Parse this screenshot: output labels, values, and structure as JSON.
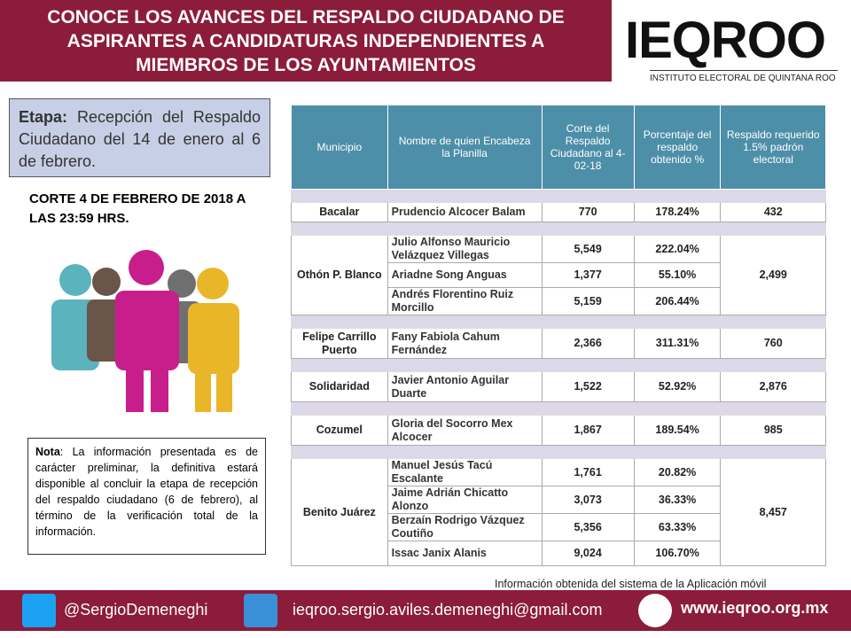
{
  "header": {
    "title": "CONOCE LOS AVANCES DEL RESPALDO CIUDADANO DE ASPIRANTES A CANDIDATURAS INDEPENDIENTES A MIEMBROS DE LOS AYUNTAMIENTOS"
  },
  "logo": {
    "name": "IEQROO",
    "subtitle": "INSTITUTO ELECTORAL DE QUINTANA ROO"
  },
  "stage": {
    "label": "Etapa:",
    "text": "Recepción del Respaldo Ciudadano del 14 de enero al 6 de febrero."
  },
  "cutoff": "CORTE 4 DE FEBRERO DE 2018 A LAS 23:59 HRS.",
  "note": {
    "label": "Nota",
    "text": ": La información presentada es de carácter preliminar, la definitiva estará disponible al concluir la etapa de recepción del respaldo ciudadano (6 de febrero), al término de la verificación total de la información."
  },
  "table": {
    "headers": [
      "Municipio",
      "Nombre de quien Encabeza la Planilla",
      "Corte del Respaldo Ciudadano al 4-02-18",
      "Porcentaje del respaldo obtenido %",
      "Respaldo requerido 1.5% padrón electoral"
    ],
    "groups": [
      {
        "municipio": "Bacalar",
        "requerido": "432",
        "candidates": [
          {
            "name": "Prudencio Alcocer Balam",
            "corte": "770",
            "pct": "178.24%"
          }
        ]
      },
      {
        "municipio": "Othón P. Blanco",
        "requerido": "2,499",
        "candidates": [
          {
            "name": "Julio Alfonso Mauricio Velázquez Villegas",
            "corte": "5,549",
            "pct": "222.04%"
          },
          {
            "name": "Ariadne Song Anguas",
            "corte": "1,377",
            "pct": "55.10%"
          },
          {
            "name": "Andrés Florentino Ruiz Morcillo",
            "corte": "5,159",
            "pct": "206.44%"
          }
        ]
      },
      {
        "municipio": "Felipe Carrillo Puerto",
        "requerido": "760",
        "candidates": [
          {
            "name": "Fany Fabiola Cahum Fernández",
            "corte": "2,366",
            "pct": "311.31%"
          }
        ]
      },
      {
        "municipio": "Solidaridad",
        "requerido": "2,876",
        "candidates": [
          {
            "name": "Javier Antonio Aguilar Duarte",
            "corte": "1,522",
            "pct": "52.92%"
          }
        ]
      },
      {
        "municipio": "Cozumel",
        "requerido": "985",
        "candidates": [
          {
            "name": "Gloria del Socorro Mex Alcocer",
            "corte": "1,867",
            "pct": "189.54%"
          }
        ]
      },
      {
        "municipio": "Benito Juárez",
        "requerido": "8,457",
        "candidates": [
          {
            "name": "Manuel Jesús Tacú Escalante",
            "corte": "1,761",
            "pct": "20.82%"
          },
          {
            "name": "Jaime Adrián Chicatto Alonzo",
            "corte": "3,073",
            "pct": "36.33%"
          },
          {
            "name": "Berzaín Rodrigo Vázquez Coutiño",
            "corte": "5,356",
            "pct": "63.33%"
          },
          {
            "name": "Issac Janix Alanis",
            "corte": "9,024",
            "pct": "106.70%"
          }
        ]
      }
    ]
  },
  "footer": {
    "source": "Información obtenida del sistema de la Aplicación móvil",
    "twitter": "@SergioDemeneghi",
    "email": "ieqroo.sergio.aviles.demeneghi@gmail.com",
    "web": "www.ieqroo.org.mx"
  }
}
